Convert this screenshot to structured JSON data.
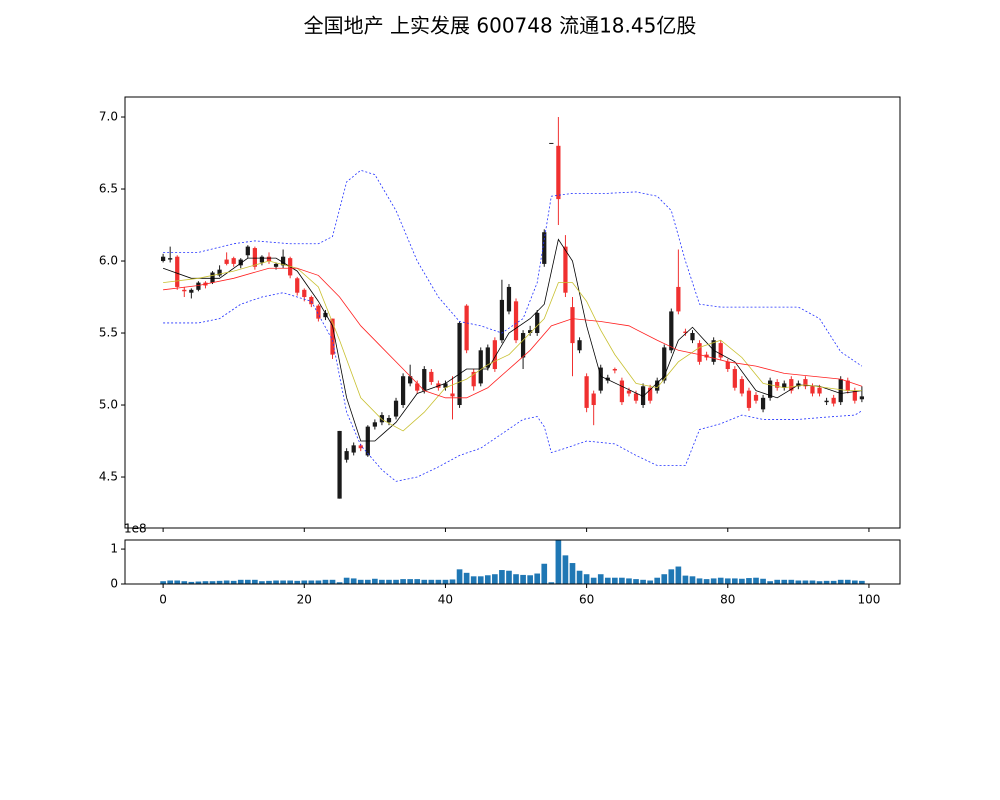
{
  "chart_data": [
    {
      "type": "candlestick",
      "title": "全国地产 上实发展 600748 流通18.45亿股",
      "x": [
        0,
        1,
        2,
        3,
        4,
        5,
        6,
        7,
        8,
        9,
        10,
        11,
        12,
        13,
        14,
        15,
        16,
        17,
        18,
        19,
        20,
        21,
        22,
        23,
        24,
        25,
        26,
        27,
        28,
        29,
        30,
        31,
        32,
        33,
        34,
        35,
        36,
        37,
        38,
        39,
        40,
        41,
        42,
        43,
        44,
        45,
        46,
        47,
        48,
        49,
        50,
        51,
        52,
        53,
        54,
        55,
        56,
        57,
        58,
        59,
        60,
        61,
        62,
        63,
        64,
        65,
        66,
        67,
        68,
        69,
        70,
        71,
        72,
        73,
        74,
        75,
        76,
        77,
        78,
        79,
        80,
        81,
        82,
        83,
        84,
        85,
        86,
        87,
        88,
        89,
        90,
        91,
        92,
        93,
        94,
        95,
        96,
        97,
        98,
        99
      ],
      "open": [
        6.0,
        6.01,
        6.03,
        5.8,
        5.78,
        5.8,
        5.85,
        5.85,
        5.9,
        6.01,
        6.02,
        5.97,
        6.04,
        6.09,
        5.99,
        6.03,
        5.96,
        5.97,
        6.02,
        5.88,
        5.8,
        5.75,
        5.69,
        5.61,
        5.6,
        4.35,
        4.62,
        4.67,
        4.72,
        4.65,
        4.85,
        4.88,
        4.88,
        4.92,
        5.0,
        5.15,
        5.15,
        5.1,
        5.23,
        5.15,
        5.12,
        5.08,
        5.0,
        5.69,
        5.23,
        5.15,
        5.26,
        5.45,
        5.45,
        5.65,
        5.72,
        5.33,
        5.5,
        5.5,
        5.98,
        6.82,
        6.8,
        6.1,
        5.68,
        5.38,
        5.2,
        5.08,
        5.1,
        5.17,
        5.25,
        5.17,
        5.1,
        5.08,
        5.0,
        5.12,
        5.1,
        5.17,
        5.38,
        5.82,
        5.51,
        5.45,
        5.43,
        5.35,
        5.3,
        5.43,
        5.3,
        5.25,
        5.18,
        5.1,
        5.07,
        4.97,
        5.05,
        5.16,
        5.12,
        5.18,
        5.13,
        5.18,
        5.13,
        5.12,
        5.02,
        5.05,
        5.02,
        5.17,
        5.1,
        5.04
      ],
      "high": [
        6.05,
        6.1,
        6.04,
        5.82,
        5.81,
        5.86,
        5.86,
        5.93,
        5.97,
        6.06,
        6.03,
        6.02,
        6.11,
        6.1,
        6.04,
        6.06,
        5.99,
        6.08,
        6.03,
        5.89,
        5.81,
        5.76,
        5.7,
        5.66,
        5.6,
        4.82,
        4.7,
        4.74,
        4.73,
        4.86,
        4.9,
        4.95,
        4.93,
        5.05,
        5.22,
        5.28,
        5.17,
        5.27,
        5.25,
        5.17,
        5.17,
        5.2,
        5.58,
        5.7,
        5.25,
        5.4,
        5.42,
        5.47,
        5.87,
        5.84,
        5.74,
        5.52,
        5.55,
        5.66,
        6.22,
        6.82,
        7.0,
        6.18,
        5.75,
        5.47,
        5.22,
        5.1,
        5.28,
        5.21,
        5.26,
        5.19,
        5.12,
        5.1,
        5.15,
        5.14,
        5.19,
        5.42,
        5.67,
        6.08,
        5.53,
        5.52,
        5.45,
        5.37,
        5.47,
        5.45,
        5.32,
        5.27,
        5.2,
        5.12,
        5.09,
        5.07,
        5.19,
        5.18,
        5.17,
        5.2,
        5.17,
        5.2,
        5.15,
        5.14,
        5.05,
        5.07,
        5.2,
        5.19,
        5.12,
        5.13
      ],
      "low": [
        5.99,
        5.99,
        5.8,
        5.75,
        5.74,
        5.79,
        5.81,
        5.84,
        5.89,
        5.97,
        5.96,
        5.95,
        6.02,
        5.94,
        5.97,
        5.98,
        5.94,
        5.95,
        5.88,
        5.76,
        5.72,
        5.68,
        5.58,
        5.59,
        5.32,
        4.35,
        4.6,
        4.65,
        4.68,
        4.64,
        4.83,
        4.86,
        4.86,
        4.9,
        4.98,
        5.13,
        5.08,
        5.08,
        5.14,
        5.1,
        5.1,
        4.9,
        4.98,
        5.36,
        5.1,
        5.13,
        5.24,
        5.23,
        5.43,
        5.63,
        5.43,
        5.25,
        5.48,
        5.48,
        5.96,
        6.82,
        6.25,
        5.75,
        5.2,
        5.36,
        4.95,
        4.86,
        5.08,
        5.15,
        5.22,
        5.0,
        5.06,
        5.01,
        4.98,
        5.01,
        5.08,
        5.15,
        5.36,
        5.63,
        5.48,
        5.43,
        5.28,
        5.31,
        5.28,
        5.31,
        5.23,
        5.1,
        5.06,
        4.96,
        5.01,
        4.95,
        5.03,
        5.1,
        5.1,
        5.08,
        5.11,
        5.11,
        5.06,
        5.06,
        5.0,
        4.99,
        5.0,
        5.08,
        5.01,
        5.02
      ],
      "close": [
        6.03,
        6.02,
        5.82,
        5.79,
        5.8,
        5.85,
        5.83,
        5.92,
        5.94,
        5.98,
        5.98,
        6.01,
        6.1,
        5.96,
        6.03,
        6.0,
        5.98,
        6.03,
        5.9,
        5.78,
        5.75,
        5.7,
        5.6,
        5.64,
        5.35,
        4.82,
        4.68,
        4.72,
        4.7,
        4.85,
        4.88,
        4.93,
        4.91,
        5.03,
        5.2,
        5.2,
        5.1,
        5.25,
        5.16,
        5.12,
        5.15,
        5.06,
        5.57,
        5.38,
        5.13,
        5.38,
        5.4,
        5.25,
        5.73,
        5.82,
        5.45,
        5.5,
        5.52,
        5.64,
        6.2,
        6.82,
        6.43,
        5.78,
        5.43,
        5.45,
        4.98,
        5.0,
        5.26,
        5.19,
        5.24,
        5.02,
        5.08,
        5.03,
        5.13,
        5.03,
        5.17,
        5.4,
        5.65,
        5.65,
        5.5,
        5.5,
        5.3,
        5.33,
        5.45,
        5.33,
        5.25,
        5.12,
        5.08,
        4.98,
        5.03,
        5.05,
        5.17,
        5.12,
        5.15,
        5.1,
        5.15,
        5.13,
        5.08,
        5.08,
        5.03,
        5.01,
        5.18,
        5.1,
        5.03,
        5.06
      ],
      "up_color": "#1a1a1a",
      "down_color": "#f03030",
      "lines": [
        {
          "color": "#000000",
          "dashed": false,
          "x": [
            0,
            4,
            8,
            12,
            16,
            19,
            22,
            24,
            26,
            28,
            30,
            33,
            36,
            40,
            43,
            46,
            49,
            52,
            54,
            56,
            58,
            60,
            62,
            65,
            68,
            71,
            73,
            75,
            78,
            81,
            84,
            87,
            90,
            93,
            96,
            99
          ],
          "values": [
            5.95,
            5.88,
            5.88,
            6.02,
            6.02,
            5.93,
            5.72,
            5.55,
            5.05,
            4.75,
            4.75,
            4.88,
            5.08,
            5.15,
            5.25,
            5.25,
            5.5,
            5.6,
            5.7,
            6.15,
            6.0,
            5.55,
            5.2,
            5.13,
            5.06,
            5.2,
            5.45,
            5.54,
            5.38,
            5.3,
            5.1,
            5.05,
            5.14,
            5.13,
            5.08,
            5.1
          ]
        },
        {
          "color": "#c8c030",
          "dashed": false,
          "x": [
            0,
            5,
            10,
            15,
            19,
            22,
            25,
            28,
            31,
            34,
            37,
            40,
            43,
            46,
            49,
            52,
            54,
            56,
            58,
            60,
            62,
            64,
            67,
            70,
            73,
            76,
            79,
            82,
            85,
            88,
            91,
            94,
            97,
            99
          ],
          "values": [
            5.85,
            5.88,
            5.93,
            6.0,
            5.95,
            5.82,
            5.45,
            5.05,
            4.9,
            4.82,
            4.95,
            5.12,
            5.18,
            5.28,
            5.35,
            5.5,
            5.6,
            5.85,
            5.85,
            5.72,
            5.52,
            5.35,
            5.15,
            5.12,
            5.3,
            5.4,
            5.45,
            5.33,
            5.15,
            5.12,
            5.14,
            5.12,
            5.1,
            5.1
          ]
        },
        {
          "color": "#ff2020",
          "dashed": false,
          "x": [
            0,
            5,
            10,
            15,
            19,
            22,
            25,
            28,
            31,
            34,
            37,
            40,
            43,
            46,
            49,
            52,
            55,
            58,
            62,
            66,
            70,
            73,
            76,
            80,
            84,
            88,
            92,
            96,
            99
          ],
          "values": [
            5.8,
            5.83,
            5.88,
            5.95,
            5.95,
            5.9,
            5.75,
            5.55,
            5.4,
            5.25,
            5.1,
            5.05,
            5.05,
            5.12,
            5.25,
            5.38,
            5.55,
            5.6,
            5.58,
            5.55,
            5.45,
            5.38,
            5.35,
            5.3,
            5.27,
            5.22,
            5.2,
            5.18,
            5.13
          ]
        },
        {
          "color": "#2030ff",
          "dashed": true,
          "x": [
            0,
            5,
            10,
            13,
            18,
            22,
            24,
            26,
            28,
            30,
            33,
            36,
            39,
            42,
            45,
            48,
            51,
            53,
            55,
            58,
            63,
            67,
            70,
            72,
            74,
            76,
            79,
            85,
            90,
            93,
            96,
            99
          ],
          "values": [
            6.06,
            6.06,
            6.12,
            6.14,
            6.12,
            6.12,
            6.17,
            6.55,
            6.63,
            6.6,
            6.35,
            6.0,
            5.75,
            5.58,
            5.55,
            5.5,
            5.6,
            5.85,
            6.45,
            6.47,
            6.47,
            6.48,
            6.45,
            6.35,
            6.0,
            5.7,
            5.68,
            5.68,
            5.68,
            5.6,
            5.37,
            5.27
          ]
        },
        {
          "color": "#2030ff",
          "dashed": true,
          "x": [
            0,
            5,
            8,
            11,
            14,
            17,
            21,
            24,
            26,
            28,
            31,
            33,
            36,
            39,
            42,
            45,
            48,
            51,
            53,
            54,
            55,
            57,
            60,
            64,
            67,
            70,
            74,
            76,
            79,
            82,
            85,
            90,
            95,
            98,
            99
          ],
          "values": [
            5.57,
            5.57,
            5.6,
            5.7,
            5.75,
            5.78,
            5.72,
            5.45,
            4.95,
            4.72,
            4.55,
            4.47,
            4.5,
            4.57,
            4.65,
            4.7,
            4.8,
            4.9,
            4.92,
            4.85,
            4.67,
            4.7,
            4.75,
            4.73,
            4.65,
            4.58,
            4.58,
            4.83,
            4.87,
            4.93,
            4.9,
            4.9,
            4.92,
            4.93,
            4.96
          ]
        }
      ],
      "xlim": [
        -5.4,
        104.4
      ],
      "ylim": [
        4.146,
        7.139
      ],
      "yticks": [
        4.5,
        {
          "value": 5,
          "label": "5.0"
        },
        5.5,
        {
          "value": 6,
          "label": "6.0"
        },
        6.5,
        {
          "value": 7,
          "label": "7.0"
        }
      ]
    },
    {
      "type": "bar",
      "offset_text": "1e8",
      "color": "#1f77b4",
      "x": [
        0,
        1,
        2,
        3,
        4,
        5,
        6,
        7,
        8,
        9,
        10,
        11,
        12,
        13,
        14,
        15,
        16,
        17,
        18,
        19,
        20,
        21,
        22,
        23,
        24,
        25,
        26,
        27,
        28,
        29,
        30,
        31,
        32,
        33,
        34,
        35,
        36,
        37,
        38,
        39,
        40,
        41,
        42,
        43,
        44,
        45,
        46,
        47,
        48,
        49,
        50,
        51,
        52,
        53,
        54,
        55,
        56,
        57,
        58,
        59,
        60,
        61,
        62,
        63,
        64,
        65,
        66,
        67,
        68,
        69,
        70,
        71,
        72,
        73,
        74,
        75,
        76,
        77,
        78,
        79,
        80,
        81,
        82,
        83,
        84,
        85,
        86,
        87,
        88,
        89,
        90,
        91,
        92,
        93,
        94,
        95,
        96,
        97,
        98,
        99
      ],
      "values": [
        0.08,
        0.1,
        0.1,
        0.08,
        0.06,
        0.07,
        0.08,
        0.08,
        0.09,
        0.1,
        0.09,
        0.12,
        0.12,
        0.12,
        0.08,
        0.09,
        0.1,
        0.1,
        0.1,
        0.09,
        0.1,
        0.1,
        0.1,
        0.12,
        0.12,
        0.05,
        0.18,
        0.16,
        0.12,
        0.12,
        0.15,
        0.12,
        0.12,
        0.12,
        0.14,
        0.14,
        0.14,
        0.12,
        0.12,
        0.12,
        0.12,
        0.13,
        0.42,
        0.32,
        0.22,
        0.22,
        0.25,
        0.28,
        0.4,
        0.38,
        0.28,
        0.26,
        0.25,
        0.3,
        0.58,
        0.05,
        1.25,
        0.82,
        0.6,
        0.38,
        0.28,
        0.18,
        0.28,
        0.18,
        0.18,
        0.18,
        0.16,
        0.14,
        0.12,
        0.1,
        0.18,
        0.28,
        0.42,
        0.5,
        0.24,
        0.22,
        0.16,
        0.14,
        0.16,
        0.18,
        0.16,
        0.16,
        0.15,
        0.17,
        0.18,
        0.15,
        0.08,
        0.12,
        0.12,
        0.12,
        0.1,
        0.1,
        0.1,
        0.08,
        0.09,
        0.09,
        0.12,
        0.12,
        0.1,
        0.09
      ],
      "xlim": [
        -5.4,
        104.4
      ],
      "ylim": [
        0,
        1.26
      ],
      "yticks": [
        0,
        1
      ],
      "xticks": [
        0,
        20,
        40,
        60,
        80,
        100
      ]
    }
  ]
}
